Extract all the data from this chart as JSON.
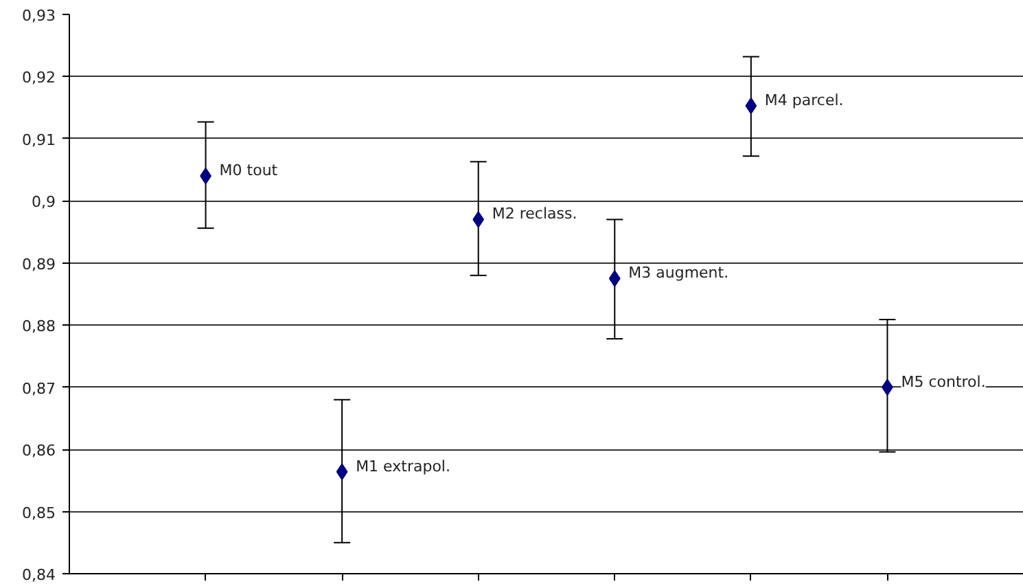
{
  "chart_data": {
    "type": "scatter",
    "categories": [
      null,
      null,
      null,
      null,
      null,
      null
    ],
    "series": [
      {
        "color": "#000080",
        "values": [
          0.904,
          0.8564,
          0.897,
          0.8875,
          0.9153,
          0.87
        ],
        "errors": [
          [
            0.8956,
            0.9127
          ],
          [
            0.845,
            0.868
          ],
          [
            0.888,
            0.9063
          ],
          [
            0.8778,
            0.897
          ],
          [
            0.9072,
            0.9232
          ],
          [
            0.8596,
            0.8809
          ]
        ]
      }
    ],
    "annotations": [
      "M0 tout",
      "M1 extrapol.",
      "M2 reclass.",
      "M3 augment.",
      "M4 parcel.",
      "M5 control."
    ],
    "ylim": [
      0.84,
      0.93
    ],
    "yticks": [
      {
        "value": 0.84,
        "label": "0,84"
      },
      {
        "value": 0.85,
        "label": "0,85"
      },
      {
        "value": 0.86,
        "label": "0,86"
      },
      {
        "value": 0.87,
        "label": "0,87"
      },
      {
        "value": 0.88,
        "label": "0,88"
      },
      {
        "value": 0.89,
        "label": "0,89"
      },
      {
        "value": 0.9,
        "label": "0,9"
      },
      {
        "value": 0.91,
        "label": "0,91"
      },
      {
        "value": 0.92,
        "label": "0,92"
      },
      {
        "value": 0.93,
        "label": "0,93"
      }
    ],
    "tick_labels": "y",
    "grid": "y",
    "marker": "diamond"
  }
}
